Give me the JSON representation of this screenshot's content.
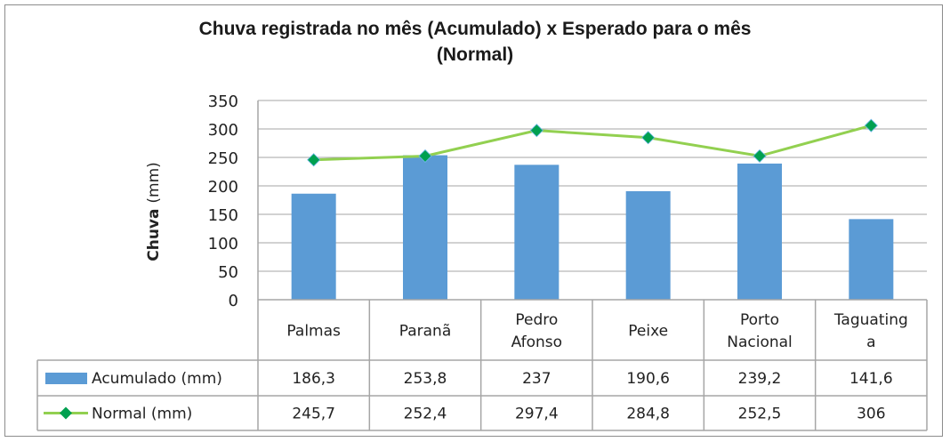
{
  "chart_data": {
    "type": "bar",
    "title": "Chuva registrada  no mês (Acumulado)  x Esperado para o mês (Normal)",
    "title_lines": [
      "Chuva registrada  no mês (Acumulado)  x Esperado para o mês",
      "(Normal)"
    ],
    "ylabel_bold": "Chuva",
    "ylabel_rest": "(mm)",
    "ylim": [
      0,
      350
    ],
    "yticks": [
      0,
      50,
      100,
      150,
      200,
      250,
      300,
      350
    ],
    "grid": true,
    "legend_placement": "data-table",
    "categories": [
      "Palmas",
      "Paranã",
      "Pedro Afonso",
      "Peixe",
      "Porto Nacional",
      "Taguatinga"
    ],
    "category_lines": [
      [
        "Palmas"
      ],
      [
        "Paranã"
      ],
      [
        "Pedro",
        "Afonso"
      ],
      [
        "Peixe"
      ],
      [
        "Porto",
        "Nacional"
      ],
      [
        "Taguating",
        "a"
      ]
    ],
    "series": [
      {
        "name": "Acumulado (mm)",
        "type": "bar",
        "color": "#5B9BD5",
        "values": [
          186.3,
          253.8,
          237,
          190.6,
          239.2,
          141.6
        ],
        "labels": [
          "186,3",
          "253,8",
          "237",
          "190,6",
          "239,2",
          "141,6"
        ]
      },
      {
        "name": "Normal (mm)",
        "type": "line",
        "color": "#92D050",
        "marker_color": "#00A050",
        "values": [
          245.7,
          252.4,
          297.4,
          284.8,
          252.5,
          306
        ],
        "labels": [
          "245,7",
          "252,4",
          "297,4",
          "284,8",
          "252,5",
          "306"
        ]
      }
    ]
  }
}
